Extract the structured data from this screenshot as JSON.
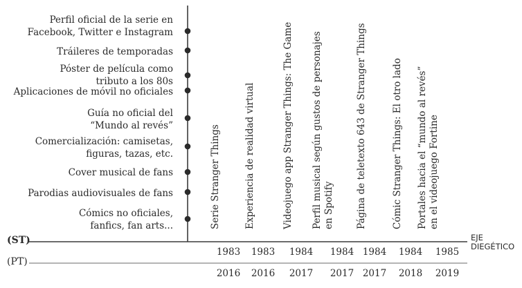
{
  "vertical_timeline_items": [
    {
      "lines": [
        "Perfil oficial de la serie en",
        "Facebook, Twitter e Instagram"
      ]
    },
    {
      "lines": [
        "Tráileres de temporadas"
      ]
    },
    {
      "lines": [
        "Póster de película como",
        "tributo a los 80s"
      ]
    },
    {
      "lines": [
        "Aplicaciones de móvil no oficiales"
      ]
    },
    {
      "lines": [
        "Guía no oficial del",
        "“Mundo al revés”"
      ]
    },
    {
      "lines": [
        "Comercialización: camisetas,",
        "figuras, tazas, etc."
      ]
    },
    {
      "lines": [
        "Cover musical de fans"
      ]
    },
    {
      "lines": [
        "Parodias audiovisuales de fans"
      ]
    },
    {
      "lines": [
        "Cómics no oficiales,",
        "fanfics, fan arts..."
      ]
    }
  ],
  "horizontal_items": [
    {
      "lines": [
        "Serie Stranger Things"
      ],
      "st_year": "1983",
      "pt_year": "2016"
    },
    {
      "lines": [
        "Experiencia de realidad virtual"
      ],
      "st_year": "1983",
      "pt_year": "2016"
    },
    {
      "lines": [
        "Videojuego app Stranger Things: The Game"
      ],
      "st_year": "1984",
      "pt_year": "2017"
    },
    {
      "lines": [
        "Perfil musical según gustos de personajes",
        "en Spotify"
      ],
      "st_year": "1984",
      "pt_year": "2017"
    },
    {
      "lines": [
        "Página de teletexto 643 de Stranger Things"
      ],
      "st_year": "1984",
      "pt_year": "2017"
    },
    {
      "lines": [
        "Cómic Stranger Things: El otro lado"
      ],
      "st_year": "1984",
      "pt_year": "2018"
    },
    {
      "lines": [
        "Portales hacia el “mundo al revés”",
        "en el videojuego Fortine"
      ],
      "st_year": "1985",
      "pt_year": "2019"
    }
  ],
  "axes": {
    "st_label": "(ST)",
    "pt_label": "(PT)",
    "eje_line1": "EJE",
    "eje_line2": "DIEGÉTICO"
  },
  "colors": {
    "ink": "#2a2a2a",
    "dot": "#2b2b2b",
    "line": "#4a4a4a"
  }
}
